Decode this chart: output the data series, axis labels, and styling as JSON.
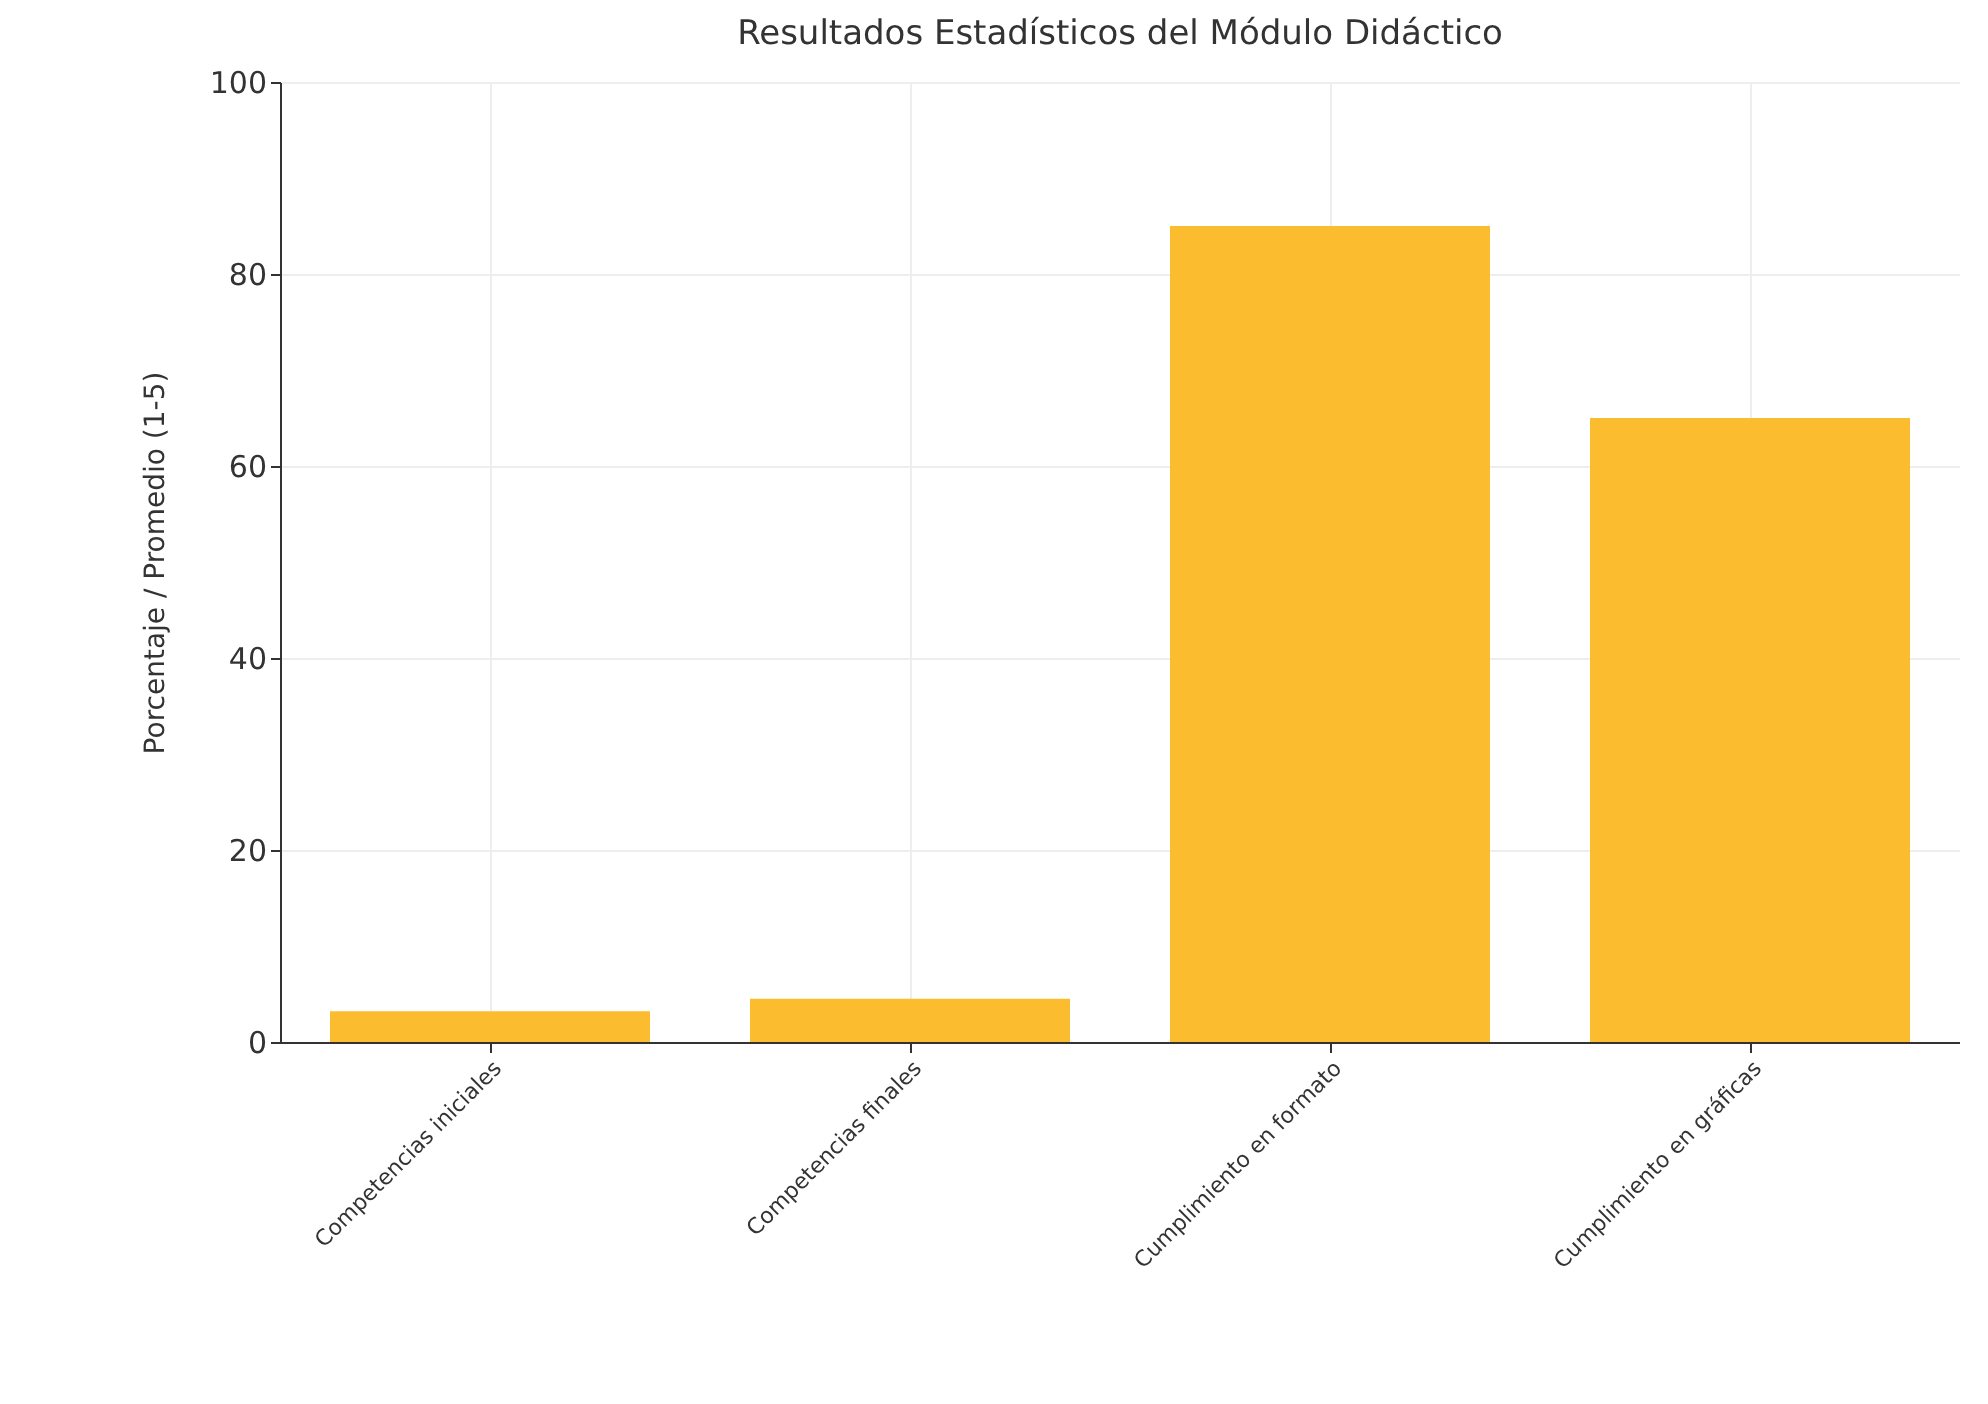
{
  "chart_data": {
    "type": "bar",
    "title": "Resultados Estadísticos del Módulo Didáctico",
    "ylabel": "Porcentaje / Promedio (1-5)",
    "categories": [
      "Competencias iniciales",
      "Competencias finales",
      "Cumplimiento en formato",
      "Cumplimiento en gráficas"
    ],
    "values": [
      3.2,
      4.5,
      85,
      65
    ],
    "color": "#fbbc2f",
    "ylim": [
      0,
      100
    ],
    "yticks": [
      0,
      20,
      40,
      60,
      80,
      100
    ],
    "grid": true
  }
}
